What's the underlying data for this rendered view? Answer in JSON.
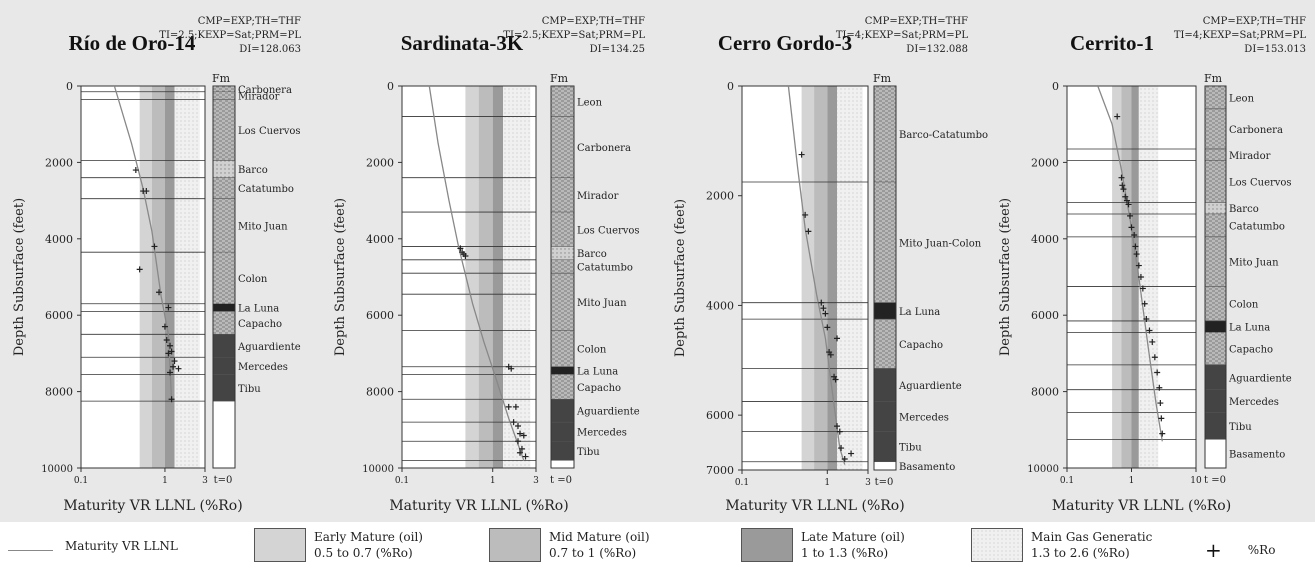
{
  "colors": {
    "panel_bg": "#e8e8e8",
    "early_mature": "#d4d4d4",
    "mid_mature": "#bcbcbc",
    "late_mature": "#9a9a9a",
    "main_gas": "#f0f0f0",
    "curve": "#888888",
    "marker": "#222222"
  },
  "legend": [
    {
      "kind": "line",
      "label": "Maturity VR LLNL"
    },
    {
      "kind": "swatch",
      "label": "Early Mature (oil)\n0.5 to 0.7 (%Ro)",
      "color_key": "early_mature"
    },
    {
      "kind": "swatch",
      "label": "Mid Mature (oil)\n0.7 to 1 (%Ro)",
      "color_key": "mid_mature"
    },
    {
      "kind": "swatch",
      "label": "Late Mature (oil)\n1 to 1.3 (%Ro)",
      "color_key": "late_mature"
    },
    {
      "kind": "swatch",
      "label": "Main Gas Generatic\n1.3 to 2.6 (%Ro)",
      "color_key": "main_gas"
    },
    {
      "kind": "marker",
      "symbol": "+",
      "label": "%Ro"
    }
  ],
  "chart_data": [
    {
      "type": "scatter",
      "title": "Río de Oro-14",
      "params": [
        "CMP=EXP;TH=THF",
        "TI=2.5;KEXP=Sat;PRM=PL",
        "DI=128.063"
      ],
      "xlabel": "Maturity VR LLNL (%Ro)",
      "ylabel": "Depth Subsurface (feet)",
      "xscale": "log",
      "xlim": [
        0.1,
        3
      ],
      "ylim": [
        0,
        10000
      ],
      "xticks": [
        0.1,
        1,
        3
      ],
      "xtick_labels": [
        "0.1",
        "1",
        "3"
      ],
      "yticks": [
        0,
        2000,
        4000,
        6000,
        8000,
        10000
      ],
      "ytick_labels": [
        "0",
        "2000",
        "4000",
        "6000",
        "8000",
        "10000"
      ],
      "horizontal_lines": [
        150,
        350,
        1950,
        2400,
        2950,
        4350,
        5700,
        5900,
        6500,
        7100,
        7550,
        8250
      ],
      "curve": [
        [
          0.25,
          0
        ],
        [
          0.4,
          1500
        ],
        [
          0.55,
          2700
        ],
        [
          0.7,
          3800
        ],
        [
          0.9,
          5500
        ],
        [
          1.1,
          6500
        ],
        [
          1.2,
          8250
        ]
      ],
      "series": [
        {
          "name": "%Ro",
          "points": [
            [
              0.45,
              2200
            ],
            [
              0.55,
              2750
            ],
            [
              0.6,
              2750
            ],
            [
              0.75,
              4200
            ],
            [
              0.5,
              4800
            ],
            [
              0.85,
              5400
            ],
            [
              1.1,
              5800
            ],
            [
              1.0,
              6300
            ],
            [
              1.05,
              6650
            ],
            [
              1.15,
              6800
            ],
            [
              1.2,
              6950
            ],
            [
              1.1,
              7000
            ],
            [
              1.3,
              7200
            ],
            [
              1.25,
              7350
            ],
            [
              1.45,
              7400
            ],
            [
              1.15,
              7500
            ],
            [
              1.2,
              8200
            ]
          ]
        }
      ],
      "strat_column_header": "Fm",
      "strat_column_footer": "t=0",
      "formations": [
        {
          "name": "Carbonera",
          "top": 0,
          "base": 150
        },
        {
          "name": "Mirador",
          "top": 150,
          "base": 350
        },
        {
          "name": "Los Cuervos",
          "top": 350,
          "base": 1950
        },
        {
          "name": "Barco",
          "top": 1950,
          "base": 2400
        },
        {
          "name": "Catatumbo",
          "top": 2400,
          "base": 2950
        },
        {
          "name": "Mito Juan",
          "top": 2950,
          "base": 4350
        },
        {
          "name": "Colon",
          "top": 4350,
          "base": 5700
        },
        {
          "name": "La Luna",
          "top": 5700,
          "base": 5900
        },
        {
          "name": "Capacho",
          "top": 5900,
          "base": 6500
        },
        {
          "name": "Aguardiente",
          "top": 6500,
          "base": 7100
        },
        {
          "name": "Mercedes",
          "top": 7100,
          "base": 7550
        },
        {
          "name": "Tibu",
          "top": 7550,
          "base": 8250
        }
      ]
    },
    {
      "type": "scatter",
      "title": "Sardinata-3K",
      "params": [
        "CMP=EXP;TH=THF",
        "TI=2.5;KEXP=Sat;PRM=PL",
        "DI=134.25"
      ],
      "xlabel": "Maturity VR LLNL (%Ro)",
      "ylabel": "Depth Subsurface (feet)",
      "xscale": "log",
      "xlim": [
        0.1,
        3
      ],
      "ylim": [
        0,
        10000
      ],
      "xticks": [
        0.1,
        1,
        3
      ],
      "xtick_labels": [
        "0.1",
        "1",
        "3"
      ],
      "yticks": [
        0,
        2000,
        4000,
        6000,
        8000,
        10000
      ],
      "ytick_labels": [
        "0",
        "2000",
        "4000",
        "6000",
        "8000",
        "10000"
      ],
      "horizontal_lines": [
        800,
        2400,
        3300,
        4200,
        4550,
        4900,
        5450,
        6400,
        7350,
        7550,
        8200,
        8800,
        9300,
        9800
      ],
      "curve": [
        [
          0.2,
          0
        ],
        [
          0.25,
          1500
        ],
        [
          0.33,
          3000
        ],
        [
          0.42,
          4200
        ],
        [
          0.6,
          5700
        ],
        [
          0.8,
          6700
        ],
        [
          1.1,
          7700
        ],
        [
          1.5,
          8700
        ],
        [
          2.2,
          9800
        ]
      ],
      "series": [
        {
          "name": "%Ro",
          "points": [
            [
              0.44,
              4250
            ],
            [
              0.46,
              4350
            ],
            [
              0.48,
              4400
            ],
            [
              0.5,
              4450
            ],
            [
              1.5,
              7350
            ],
            [
              1.6,
              7400
            ],
            [
              1.5,
              8400
            ],
            [
              1.8,
              8400
            ],
            [
              1.7,
              8800
            ],
            [
              1.9,
              8900
            ],
            [
              2.0,
              9100
            ],
            [
              2.2,
              9150
            ],
            [
              1.9,
              9300
            ],
            [
              2.1,
              9500
            ],
            [
              2.0,
              9600
            ],
            [
              2.3,
              9700
            ]
          ]
        }
      ],
      "strat_column_header": "Fm",
      "strat_column_footer": "t =0",
      "formations": [
        {
          "name": "Leon",
          "top": 0,
          "base": 800
        },
        {
          "name": "Carbonera",
          "top": 800,
          "base": 2400
        },
        {
          "name": "Mirador",
          "top": 2400,
          "base": 3300
        },
        {
          "name": "Los Cuervos",
          "top": 3300,
          "base": 4200
        },
        {
          "name": "Barco",
          "top": 4200,
          "base": 4550
        },
        {
          "name": "Catatumbo",
          "top": 4550,
          "base": 4900
        },
        {
          "name": "Mito Juan",
          "top": 4900,
          "base": 6400
        },
        {
          "name": "Colon",
          "top": 6400,
          "base": 7350
        },
        {
          "name": "La Luna",
          "top": 7350,
          "base": 7550
        },
        {
          "name": "Capacho",
          "top": 7550,
          "base": 8200
        },
        {
          "name": "Aguardiente",
          "top": 8200,
          "base": 8800
        },
        {
          "name": "Mercedes",
          "top": 8800,
          "base": 9300
        },
        {
          "name": "Tibu",
          "top": 9300,
          "base": 9800
        }
      ]
    },
    {
      "type": "scatter",
      "title": "Cerro Gordo-3",
      "params": [
        "CMP=EXP;TH=THF",
        "TI=4;KEXP=Sat;PRM=PL",
        "DI=132.088"
      ],
      "xlabel": "Maturity VR LLNL (%Ro)",
      "ylabel": "Depth Subsurface (feet)",
      "xscale": "log",
      "xlim": [
        0.1,
        3
      ],
      "ylim": [
        0,
        7000
      ],
      "xticks": [
        0.1,
        1,
        3
      ],
      "xtick_labels": [
        "0.1",
        "1",
        "3"
      ],
      "yticks": [
        0,
        2000,
        4000,
        6000,
        7000
      ],
      "ytick_labels": [
        "0",
        "2000",
        "4000",
        "6000",
        "7000"
      ],
      "horizontal_lines": [
        1750,
        3950,
        4250,
        5150,
        5750,
        6300,
        6850
      ],
      "curve": [
        [
          0.35,
          0
        ],
        [
          0.45,
          1500
        ],
        [
          0.55,
          2600
        ],
        [
          0.75,
          3800
        ],
        [
          0.95,
          4600
        ],
        [
          1.15,
          5600
        ],
        [
          1.4,
          6600
        ],
        [
          1.6,
          6900
        ]
      ],
      "series": [
        {
          "name": "%Ro",
          "points": [
            [
              0.5,
              1250
            ],
            [
              0.55,
              2350
            ],
            [
              0.6,
              2650
            ],
            [
              0.85,
              3950
            ],
            [
              0.9,
              4050
            ],
            [
              0.95,
              4150
            ],
            [
              1.0,
              4400
            ],
            [
              1.3,
              4600
            ],
            [
              1.05,
              4850
            ],
            [
              1.1,
              4900
            ],
            [
              1.2,
              5300
            ],
            [
              1.25,
              5350
            ],
            [
              1.3,
              6200
            ],
            [
              1.4,
              6300
            ],
            [
              1.45,
              6600
            ],
            [
              1.9,
              6700
            ],
            [
              1.6,
              6800
            ]
          ]
        }
      ],
      "strat_column_header": "Fm",
      "strat_column_footer": "t=0",
      "formations": [
        {
          "name": "Barco-Catatumbo",
          "top": 0,
          "base": 1750
        },
        {
          "name": "Mito Juan-Colon",
          "top": 1750,
          "base": 3950
        },
        {
          "name": "La Luna",
          "top": 3950,
          "base": 4250
        },
        {
          "name": "Capacho",
          "top": 4250,
          "base": 5150
        },
        {
          "name": "Aguardiente",
          "top": 5150,
          "base": 5750
        },
        {
          "name": "Mercedes",
          "top": 5750,
          "base": 6300
        },
        {
          "name": "Tibu",
          "top": 6300,
          "base": 6850
        },
        {
          "name": "Basamento",
          "top": 6850,
          "base": 7000
        }
      ]
    },
    {
      "type": "scatter",
      "title": "Cerrito-1",
      "params": [
        "CMP=EXP;TH=THF",
        "TI=4;KEXP=Sat;PRM=PL",
        "DI=153.013"
      ],
      "xlabel": "Maturity VR LLNL (%Ro)",
      "ylabel": "Depth Subsurface (feet)",
      "xscale": "log",
      "xlim": [
        0.1,
        10
      ],
      "ylim": [
        0,
        10000
      ],
      "xticks": [
        0.1,
        1,
        10
      ],
      "xtick_labels": [
        "0.1",
        "1",
        "10"
      ],
      "yticks": [
        0,
        2000,
        4000,
        6000,
        8000,
        10000
      ],
      "ytick_labels": [
        "0",
        "2000",
        "4000",
        "6000",
        "8000",
        "10000"
      ],
      "horizontal_lines": [
        1650,
        1950,
        3050,
        3350,
        3950,
        5250,
        6150,
        6450,
        7300,
        7950,
        8550,
        9250
      ],
      "curve": [
        [
          0.3,
          0
        ],
        [
          0.5,
          1000
        ],
        [
          0.7,
          2200
        ],
        [
          0.95,
          3500
        ],
        [
          1.3,
          5000
        ],
        [
          1.8,
          6800
        ],
        [
          2.4,
          8300
        ],
        [
          3.0,
          9300
        ]
      ],
      "series": [
        {
          "name": "%Ro",
          "points": [
            [
              0.6,
              800
            ],
            [
              0.7,
              2400
            ],
            [
              0.72,
              2600
            ],
            [
              0.75,
              2700
            ],
            [
              0.8,
              2900
            ],
            [
              0.85,
              3000
            ],
            [
              0.9,
              3100
            ],
            [
              0.95,
              3400
            ],
            [
              1.0,
              3700
            ],
            [
              1.1,
              3900
            ],
            [
              1.15,
              4200
            ],
            [
              1.2,
              4400
            ],
            [
              1.3,
              4700
            ],
            [
              1.4,
              5000
            ],
            [
              1.5,
              5300
            ],
            [
              1.6,
              5700
            ],
            [
              1.7,
              6100
            ],
            [
              1.9,
              6400
            ],
            [
              2.1,
              6700
            ],
            [
              2.3,
              7100
            ],
            [
              2.5,
              7500
            ],
            [
              2.7,
              7900
            ],
            [
              2.8,
              8300
            ],
            [
              2.9,
              8700
            ],
            [
              3.0,
              9100
            ]
          ]
        }
      ],
      "strat_column_header": "Fm",
      "strat_column_footer": "t =0",
      "formations": [
        {
          "name": "Leon",
          "top": 0,
          "base": 600
        },
        {
          "name": "Carbonera",
          "top": 600,
          "base": 1650
        },
        {
          "name": "Mirador",
          "top": 1650,
          "base": 1950
        },
        {
          "name": "Los Cuervos",
          "top": 1950,
          "base": 3050
        },
        {
          "name": "Barco",
          "top": 3050,
          "base": 3350
        },
        {
          "name": "Catatumbo",
          "top": 3350,
          "base": 3950
        },
        {
          "name": "Mito Juan",
          "top": 3950,
          "base": 5250
        },
        {
          "name": "Colon",
          "top": 5250,
          "base": 6150
        },
        {
          "name": "La Luna",
          "top": 6150,
          "base": 6450
        },
        {
          "name": "Capacho",
          "top": 6450,
          "base": 7300
        },
        {
          "name": "Aguardiente",
          "top": 7300,
          "base": 7950
        },
        {
          "name": "Mercedes",
          "top": 7950,
          "base": 8550
        },
        {
          "name": "Tibu",
          "top": 8550,
          "base": 9250
        },
        {
          "name": "Basamento",
          "top": 9250,
          "base": 10000
        }
      ]
    }
  ]
}
